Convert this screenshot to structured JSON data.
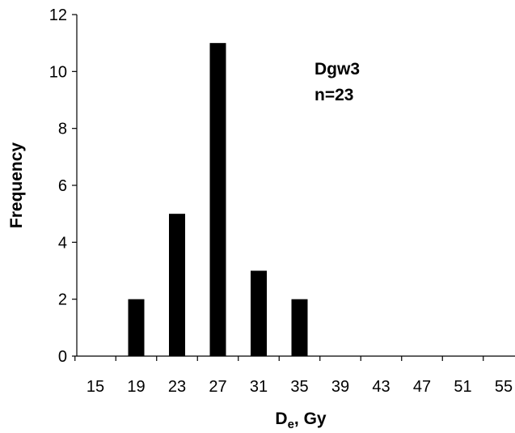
{
  "chart_data": {
    "type": "bar",
    "categories": [
      "15",
      "19",
      "23",
      "27",
      "31",
      "35",
      "39",
      "43",
      "47",
      "51",
      "55"
    ],
    "values": [
      0,
      2,
      5,
      11,
      3,
      2,
      0,
      0,
      0,
      0,
      0
    ],
    "ylabel": "Frequency",
    "xlabel_main": "D",
    "xlabel_sub": "e",
    "xlabel_rest": ", Gy",
    "ylim": [
      0,
      12
    ],
    "yticks": [
      "0",
      "2",
      "4",
      "6",
      "8",
      "10",
      "12"
    ],
    "annotation": [
      "Dgw3",
      "n=23"
    ],
    "grid": false,
    "bar_color": "#000000"
  }
}
